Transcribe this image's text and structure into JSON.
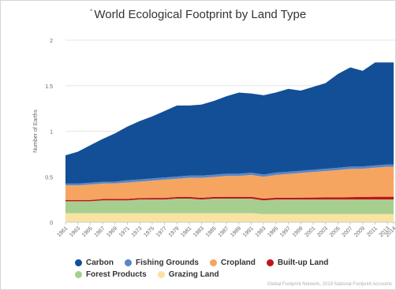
{
  "chart_data": {
    "type": "area",
    "stacked": true,
    "title": "World Ecological Footprint by Land Type",
    "title_marker": "°",
    "xlabel": "",
    "ylabel": "Number of Earths",
    "ylim": [
      0,
      2
    ],
    "yticks": [
      "0",
      "0.5",
      "1",
      "1.5",
      "2"
    ],
    "xlim": [
      1961,
      2014
    ],
    "xticks": [
      "1961",
      "1963",
      "1965",
      "1967",
      "1969",
      "1971",
      "1973",
      "1975",
      "1977",
      "1979",
      "1981",
      "1983",
      "1985",
      "1987",
      "1989",
      "1991",
      "1993",
      "1995",
      "1997",
      "1999",
      "2001",
      "2003",
      "2005",
      "2007",
      "2009",
      "2011",
      "2013",
      "2014"
    ],
    "x": [
      1961,
      1963,
      1965,
      1967,
      1969,
      1971,
      1973,
      1975,
      1977,
      1979,
      1981,
      1983,
      1985,
      1987,
      1989,
      1991,
      1993,
      1995,
      1997,
      1999,
      2001,
      2003,
      2005,
      2007,
      2009,
      2011,
      2013,
      2014
    ],
    "series": [
      {
        "name": "Grazing Land",
        "color": "#f8e3a3",
        "values": [
          0.1,
          0.1,
          0.1,
          0.1,
          0.1,
          0.1,
          0.1,
          0.1,
          0.1,
          0.1,
          0.1,
          0.1,
          0.1,
          0.1,
          0.1,
          0.1,
          0.09,
          0.09,
          0.09,
          0.09,
          0.09,
          0.09,
          0.09,
          0.09,
          0.09,
          0.09,
          0.09,
          0.09
        ]
      },
      {
        "name": "Forest Products",
        "color": "#a6cf8f",
        "values": [
          0.13,
          0.13,
          0.13,
          0.14,
          0.14,
          0.14,
          0.15,
          0.15,
          0.15,
          0.16,
          0.16,
          0.15,
          0.16,
          0.16,
          0.16,
          0.16,
          0.15,
          0.16,
          0.16,
          0.16,
          0.16,
          0.16,
          0.16,
          0.16,
          0.16,
          0.16,
          0.16,
          0.16
        ]
      },
      {
        "name": "Built-up Land",
        "color": "#c0151c",
        "values": [
          0.015,
          0.015,
          0.015,
          0.015,
          0.016,
          0.016,
          0.016,
          0.017,
          0.017,
          0.017,
          0.018,
          0.018,
          0.018,
          0.019,
          0.019,
          0.019,
          0.02,
          0.02,
          0.02,
          0.021,
          0.022,
          0.023,
          0.024,
          0.026,
          0.028,
          0.03,
          0.03,
          0.03
        ]
      },
      {
        "name": "Cropland",
        "color": "#f5a560",
        "values": [
          0.16,
          0.16,
          0.17,
          0.17,
          0.17,
          0.18,
          0.18,
          0.19,
          0.2,
          0.2,
          0.21,
          0.22,
          0.22,
          0.23,
          0.23,
          0.24,
          0.24,
          0.25,
          0.26,
          0.27,
          0.28,
          0.29,
          0.3,
          0.31,
          0.31,
          0.32,
          0.33,
          0.33
        ]
      },
      {
        "name": "Fishing Grounds",
        "color": "#5b86c5",
        "values": [
          0.02,
          0.02,
          0.02,
          0.02,
          0.02,
          0.025,
          0.025,
          0.025,
          0.025,
          0.025,
          0.025,
          0.025,
          0.025,
          0.025,
          0.025,
          0.025,
          0.025,
          0.025,
          0.025,
          0.025,
          0.025,
          0.025,
          0.025,
          0.025,
          0.025,
          0.025,
          0.025,
          0.025
        ]
      },
      {
        "name": "Carbon",
        "color": "#124f96",
        "values": [
          0.31,
          0.35,
          0.41,
          0.47,
          0.53,
          0.59,
          0.64,
          0.68,
          0.73,
          0.78,
          0.77,
          0.78,
          0.81,
          0.85,
          0.89,
          0.87,
          0.87,
          0.88,
          0.91,
          0.88,
          0.91,
          0.94,
          1.03,
          1.09,
          1.05,
          1.13,
          1.12,
          1.12
        ]
      }
    ],
    "legend": {
      "placement": "bottom",
      "rows": [
        [
          {
            "label": "Carbon",
            "color": "#124f96"
          },
          {
            "label": "Fishing Grounds",
            "color": "#5b86c5"
          },
          {
            "label": "Cropland",
            "color": "#f5a560"
          },
          {
            "label": "Built-up Land",
            "color": "#c0151c"
          }
        ],
        [
          {
            "label": "Forest Products",
            "color": "#a6cf8f"
          },
          {
            "label": "Grazing Land",
            "color": "#f8e3a3"
          }
        ]
      ]
    },
    "grid": {
      "horizontal": true,
      "vertical": false
    },
    "credit": "Global Footprint Network, 2019 National Footprint Accounts"
  }
}
